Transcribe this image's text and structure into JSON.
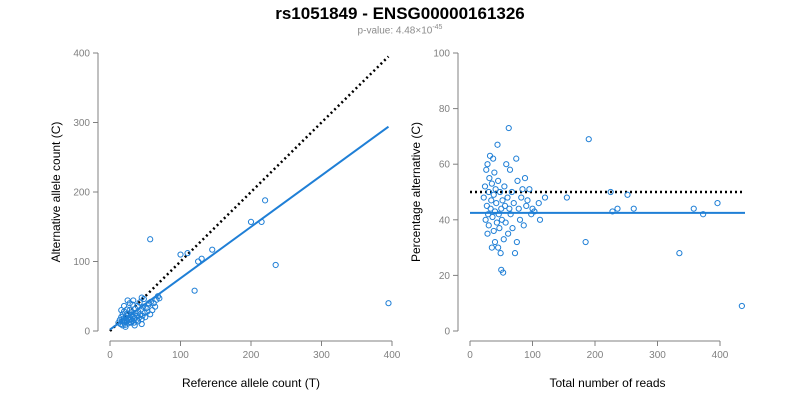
{
  "header": {
    "title": "rs1051849 - ENSG00000161326",
    "pvalue_prefix": "p-value: 4.48×10",
    "pvalue_exponent": "-45"
  },
  "colors": {
    "points": "#1f7fd6",
    "fit_line": "#1f7fd6",
    "reference_line": "#000000",
    "axis": "#808080"
  },
  "chart_data": [
    {
      "type": "scatter",
      "title": "",
      "xlabel": "Reference allele count (T)",
      "ylabel": "Alternative allele count (C)",
      "xlim": [
        0,
        400
      ],
      "ylim": [
        0,
        400
      ],
      "xticks": [
        0,
        100,
        200,
        300,
        400
      ],
      "yticks": [
        0,
        100,
        200,
        300,
        400
      ],
      "grid": false,
      "points": [
        [
          12,
          12
        ],
        [
          14,
          16
        ],
        [
          15,
          10
        ],
        [
          16,
          20
        ],
        [
          17,
          14
        ],
        [
          18,
          8
        ],
        [
          18,
          24
        ],
        [
          19,
          17
        ],
        [
          20,
          12
        ],
        [
          20,
          28
        ],
        [
          21,
          15
        ],
        [
          22,
          19
        ],
        [
          22,
          9
        ],
        [
          23,
          22
        ],
        [
          24,
          14
        ],
        [
          24,
          31
        ],
        [
          25,
          18
        ],
        [
          26,
          11
        ],
        [
          26,
          25
        ],
        [
          27,
          16
        ],
        [
          28,
          20
        ],
        [
          28,
          40
        ],
        [
          29,
          13
        ],
        [
          30,
          23
        ],
        [
          30,
          17
        ],
        [
          31,
          27
        ],
        [
          32,
          15
        ],
        [
          33,
          21
        ],
        [
          33,
          44
        ],
        [
          34,
          12
        ],
        [
          35,
          18
        ],
        [
          36,
          26
        ],
        [
          36,
          32
        ],
        [
          38,
          16
        ],
        [
          38,
          22
        ],
        [
          39,
          36
        ],
        [
          40,
          14
        ],
        [
          40,
          28
        ],
        [
          41,
          19
        ],
        [
          42,
          41
        ],
        [
          43,
          24
        ],
        [
          44,
          31
        ],
        [
          45,
          10
        ],
        [
          45,
          17
        ],
        [
          46,
          22
        ],
        [
          47,
          35
        ],
        [
          48,
          46
        ],
        [
          49,
          26
        ],
        [
          50,
          20
        ],
        [
          52,
          33
        ],
        [
          53,
          28
        ],
        [
          55,
          38
        ],
        [
          57,
          24
        ],
        [
          58,
          42
        ],
        [
          60,
          30
        ],
        [
          62,
          40
        ],
        [
          64,
          35
        ],
        [
          66,
          45
        ],
        [
          68,
          50
        ],
        [
          70,
          47
        ],
        [
          16,
          30
        ],
        [
          20,
          36
        ],
        [
          25,
          44
        ],
        [
          30,
          12
        ],
        [
          35,
          8
        ],
        [
          45,
          48
        ],
        [
          55,
          40
        ],
        [
          22,
          6
        ],
        [
          28,
          30
        ],
        [
          32,
          38
        ],
        [
          57,
          132
        ],
        [
          100,
          110
        ],
        [
          110,
          112
        ],
        [
          120,
          58
        ],
        [
          125,
          100
        ],
        [
          130,
          104
        ],
        [
          145,
          117
        ],
        [
          200,
          157
        ],
        [
          215,
          157
        ],
        [
          220,
          188
        ],
        [
          235,
          95
        ],
        [
          395,
          40
        ]
      ],
      "fit_line": [
        [
          0,
          2
        ],
        [
          395,
          294
        ]
      ],
      "reference_line": [
        [
          0,
          0
        ],
        [
          395,
          395
        ]
      ]
    },
    {
      "type": "scatter",
      "title": "",
      "xlabel": "Total number of reads",
      "ylabel": "Percentage alternative (C)",
      "xlim": [
        0,
        440
      ],
      "ylim": [
        0,
        100
      ],
      "xticks": [
        0,
        100,
        200,
        300,
        400
      ],
      "yticks": [
        0,
        20,
        40,
        60,
        80,
        100
      ],
      "grid": false,
      "points": [
        [
          22,
          48
        ],
        [
          24,
          52
        ],
        [
          25,
          40
        ],
        [
          26,
          58
        ],
        [
          27,
          45
        ],
        [
          28,
          35
        ],
        [
          28,
          60
        ],
        [
          29,
          42
        ],
        [
          30,
          50
        ],
        [
          30,
          38
        ],
        [
          31,
          55
        ],
        [
          32,
          63
        ],
        [
          33,
          44
        ],
        [
          34,
          47
        ],
        [
          35,
          30
        ],
        [
          35,
          53
        ],
        [
          36,
          41
        ],
        [
          37,
          62
        ],
        [
          38,
          36
        ],
        [
          38,
          49
        ],
        [
          39,
          57
        ],
        [
          40,
          43
        ],
        [
          40,
          32
        ],
        [
          41,
          51
        ],
        [
          42,
          46
        ],
        [
          43,
          39
        ],
        [
          44,
          67
        ],
        [
          45,
          30
        ],
        [
          45,
          54
        ],
        [
          46,
          42
        ],
        [
          47,
          37
        ],
        [
          48,
          50
        ],
        [
          49,
          28
        ],
        [
          50,
          44
        ],
        [
          50,
          22
        ],
        [
          51,
          40
        ],
        [
          52,
          47
        ],
        [
          53,
          21
        ],
        [
          54,
          33
        ],
        [
          55,
          52
        ],
        [
          56,
          45
        ],
        [
          57,
          39
        ],
        [
          58,
          60
        ],
        [
          60,
          48
        ],
        [
          61,
          35
        ],
        [
          62,
          73
        ],
        [
          63,
          44
        ],
        [
          64,
          58
        ],
        [
          65,
          42
        ],
        [
          67,
          50
        ],
        [
          68,
          37
        ],
        [
          70,
          46
        ],
        [
          72,
          28
        ],
        [
          74,
          62
        ],
        [
          75,
          32
        ],
        [
          76,
          54
        ],
        [
          78,
          44
        ],
        [
          80,
          40
        ],
        [
          82,
          48
        ],
        [
          84,
          51
        ],
        [
          86,
          38
        ],
        [
          88,
          55
        ],
        [
          90,
          45
        ],
        [
          92,
          47
        ],
        [
          95,
          51
        ],
        [
          98,
          42
        ],
        [
          100,
          44
        ],
        [
          103,
          43
        ],
        [
          110,
          46
        ],
        [
          112,
          40
        ],
        [
          120,
          48
        ],
        [
          155,
          48
        ],
        [
          185,
          32
        ],
        [
          190,
          69
        ],
        [
          225,
          50
        ],
        [
          228,
          43
        ],
        [
          236,
          44
        ],
        [
          252,
          49
        ],
        [
          262,
          44
        ],
        [
          335,
          28
        ],
        [
          358,
          44
        ],
        [
          373,
          42
        ],
        [
          396,
          46
        ],
        [
          435,
          9
        ]
      ],
      "fit_line": [
        [
          0,
          42.5
        ],
        [
          440,
          42.5
        ]
      ],
      "reference_line": [
        [
          0,
          50
        ],
        [
          440,
          50
        ]
      ]
    }
  ]
}
